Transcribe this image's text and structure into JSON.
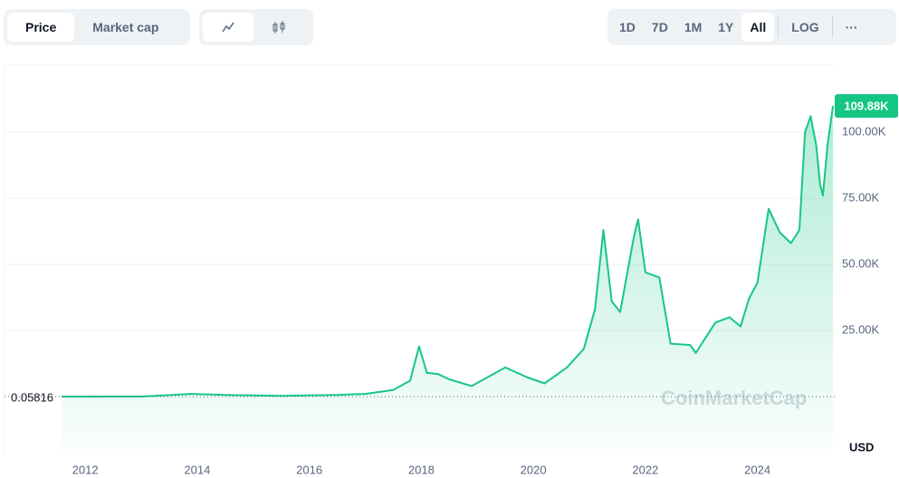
{
  "toolbar": {
    "tabs": [
      "Price",
      "Market cap"
    ],
    "ranges": [
      "1D",
      "7D",
      "1M",
      "1Y",
      "All"
    ],
    "log": "LOG",
    "more": "···"
  },
  "chart_data": {
    "type": "line",
    "currency": "USD",
    "watermark": "CoinMarketCap",
    "x": [
      2011.58,
      2013.0,
      2013.9,
      2014.5,
      2015.5,
      2016.5,
      2017.0,
      2017.5,
      2017.8,
      2017.96,
      2018.1,
      2018.3,
      2018.5,
      2018.9,
      2019.5,
      2019.9,
      2020.2,
      2020.6,
      2020.9,
      2021.1,
      2021.25,
      2021.4,
      2021.55,
      2021.8,
      2021.87,
      2022.0,
      2022.25,
      2022.45,
      2022.8,
      2022.9,
      2023.25,
      2023.5,
      2023.7,
      2023.85,
      2024.0,
      2024.2,
      2024.4,
      2024.6,
      2024.75,
      2024.85,
      2024.95,
      2025.05,
      2025.12,
      2025.17,
      2025.25,
      2025.35
    ],
    "series": [
      {
        "name": "Price",
        "color": "#16c784",
        "values": [
          0.05816,
          13,
          1000,
          600,
          250,
          650,
          1000,
          2500,
          6000,
          19000,
          9000,
          8500,
          6500,
          4000,
          11000,
          7200,
          5000,
          11000,
          18000,
          33000,
          63000,
          36000,
          32000,
          61000,
          67000,
          47000,
          45000,
          20000,
          19500,
          16500,
          28000,
          30000,
          26500,
          37000,
          43000,
          71000,
          62000,
          58000,
          63000,
          100000,
          106000,
          95000,
          80000,
          76000,
          95000,
          109880
        ],
        "value_labels": [
          "0.05816",
          null,
          null,
          null,
          null,
          null,
          null,
          null,
          null,
          null,
          null,
          null,
          null,
          null,
          null,
          null,
          null,
          null,
          null,
          null,
          null,
          null,
          null,
          null,
          null,
          null,
          null,
          null,
          null,
          null,
          null,
          null,
          null,
          null,
          null,
          null,
          null,
          null,
          null,
          null,
          null,
          null,
          null,
          null,
          null,
          "109.88K"
        ]
      }
    ],
    "xlim": [
      2010.56,
      2025.38
    ],
    "xticks": [
      2012,
      2014,
      2016,
      2018,
      2020,
      2022,
      2024
    ],
    "ylim": [
      -21200,
      125300
    ],
    "yticks": [
      {
        "value": 25000,
        "label": "25.00K"
      },
      {
        "value": 50000,
        "label": "50.00K"
      },
      {
        "value": 75000,
        "label": "75.00K"
      },
      {
        "value": 100000,
        "label": "100.00K"
      }
    ],
    "grid": true
  }
}
